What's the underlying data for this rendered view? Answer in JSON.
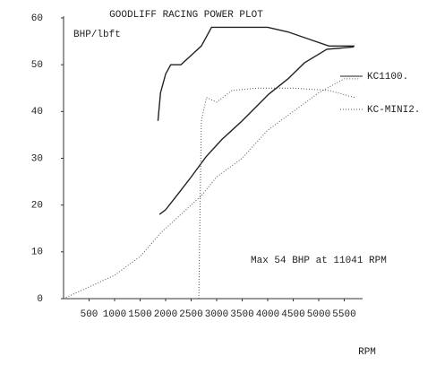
{
  "chart_data": {
    "type": "line",
    "title": "GOODLIFF RACING POWER PLOT",
    "y_label": "BHP/lbft",
    "x_label": "RPM",
    "annotation": "Max 54 BHP at 11041 RPM",
    "xlim": [
      0,
      5800
    ],
    "xticks": [
      500,
      1000,
      1500,
      2000,
      2500,
      3000,
      3500,
      4000,
      4500,
      5000,
      5500
    ],
    "ylim": [
      0,
      60
    ],
    "yticks": [
      0,
      10,
      20,
      30,
      40,
      50,
      60
    ],
    "grid": false,
    "series": [
      {
        "name": "KC1100.",
        "color": "#222222",
        "style": "solid",
        "x": [
          1850,
          1900,
          2000,
          2100,
          2300,
          2500,
          2700,
          2900,
          3300,
          4000,
          4400,
          4800,
          5200,
          5700
        ],
        "values": [
          38,
          44,
          48,
          50,
          50,
          52,
          54,
          58,
          58,
          58,
          57,
          55.5,
          54,
          54
        ]
      },
      {
        "color": "#222222",
        "style": "solid",
        "x": [
          1880,
          2000,
          2260,
          2500,
          2790,
          3100,
          3490,
          4020,
          4400,
          4720,
          5160,
          5690
        ],
        "values": [
          18,
          19,
          22.6,
          26,
          30.3,
          34,
          37.9,
          43.7,
          47,
          50.4,
          53.3,
          53.8
        ]
      },
      {
        "name": "KC-MINI2.",
        "color": "#555555",
        "style": "dotted",
        "x": [
          2650,
          2700,
          2800,
          3000,
          3300,
          3800,
          4500,
          5200,
          5700
        ],
        "values": [
          0,
          38,
          43,
          42,
          44.5,
          45,
          45,
          44.5,
          43
        ]
      },
      {
        "color": "#555555",
        "style": "dotted",
        "x": [
          0,
          500,
          1000,
          1500,
          1900,
          2300,
          2700,
          3000,
          3500,
          4000,
          4500,
          5000,
          5500,
          5800
        ],
        "values": [
          0,
          2.5,
          5,
          9,
          14,
          18,
          22,
          26,
          30,
          36,
          40,
          44,
          47,
          47
        ]
      }
    ]
  }
}
